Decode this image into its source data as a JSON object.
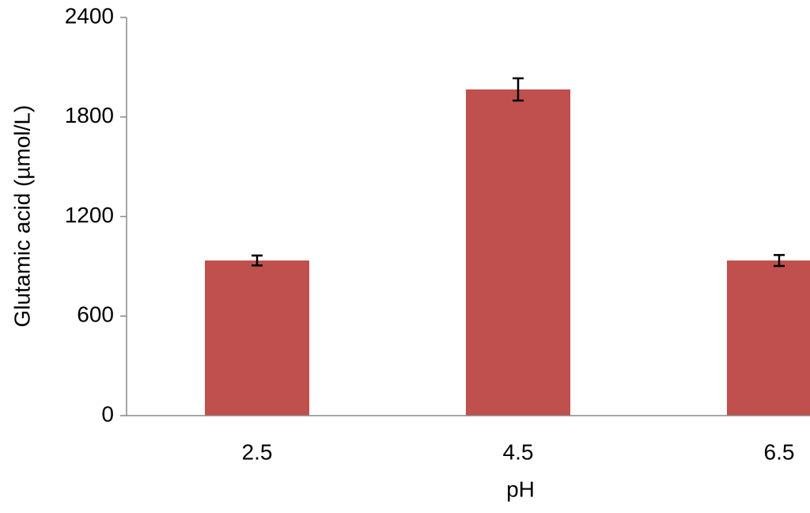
{
  "chart_data": {
    "type": "bar",
    "x_label": "pH",
    "y_label": "Glutamic acid (µmol/L)",
    "categories": [
      "2.5",
      "4.5",
      "6.5"
    ],
    "values": [
      935,
      1966,
      935
    ],
    "errors": [
      30,
      67,
      33
    ],
    "color": "#c0504d",
    "ylim": [
      0,
      2400
    ],
    "yticks": [
      0,
      600,
      1200,
      1800,
      2400
    ],
    "grid": false
  }
}
